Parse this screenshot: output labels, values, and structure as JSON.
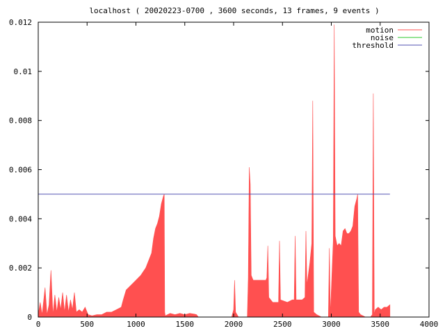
{
  "chart_data": {
    "type": "area",
    "title": "localhost ( 20020223-0700 , 3600 seconds, 13 frames, 9 events )",
    "xlabel": "",
    "ylabel": "",
    "xlim": [
      0,
      4000
    ],
    "ylim": [
      0,
      0.012
    ],
    "x_ticks": [
      "0",
      "500",
      "1000",
      "1500",
      "2000",
      "2500",
      "3000",
      "3500",
      "4000"
    ],
    "y_ticks": [
      "0",
      "0.002",
      "0.004",
      "0.006",
      "0.008",
      "0.01",
      "0.012"
    ],
    "grid": false,
    "legend_position": "top-right",
    "series": [
      {
        "name": "motion",
        "color": "#ff5050",
        "type": "area",
        "points": [
          [
            0,
            0.0001
          ],
          [
            20,
            0.0006
          ],
          [
            40,
            0.0001
          ],
          [
            70,
            0.0012
          ],
          [
            90,
            0.0001
          ],
          [
            110,
            0.0005
          ],
          [
            130,
            0.0019
          ],
          [
            150,
            0.0001
          ],
          [
            170,
            0.0009
          ],
          [
            190,
            0.0002
          ],
          [
            210,
            0.0008
          ],
          [
            230,
            0.0003
          ],
          [
            250,
            0.001
          ],
          [
            270,
            0.0002
          ],
          [
            290,
            0.0009
          ],
          [
            310,
            0.0002
          ],
          [
            330,
            0.0007
          ],
          [
            350,
            0.0003
          ],
          [
            370,
            0.001
          ],
          [
            390,
            0.0002
          ],
          [
            420,
            0.0003
          ],
          [
            450,
            0.0002
          ],
          [
            480,
            0.0004
          ],
          [
            510,
            0.0001
          ],
          [
            550,
            5e-05
          ],
          [
            600,
            0.0001
          ],
          [
            650,
            0.0001
          ],
          [
            700,
            0.0002
          ],
          [
            750,
            0.0002
          ],
          [
            800,
            0.0003
          ],
          [
            850,
            0.0004
          ],
          [
            870,
            0.0007
          ],
          [
            900,
            0.0011
          ],
          [
            950,
            0.0013
          ],
          [
            1000,
            0.0015
          ],
          [
            1050,
            0.0017
          ],
          [
            1100,
            0.002
          ],
          [
            1140,
            0.0024
          ],
          [
            1160,
            0.0026
          ],
          [
            1180,
            0.0032
          ],
          [
            1200,
            0.0036
          ],
          [
            1220,
            0.0038
          ],
          [
            1240,
            0.0041
          ],
          [
            1260,
            0.0046
          ],
          [
            1280,
            0.0049
          ],
          [
            1290,
            0.005
          ],
          [
            1295,
            0.0002
          ],
          [
            1300,
            5e-05
          ],
          [
            1350,
            0.00015
          ],
          [
            1400,
            0.0001
          ],
          [
            1450,
            0.00015
          ],
          [
            1500,
            0.0001
          ],
          [
            1550,
            0.00015
          ],
          [
            1600,
            0.00012
          ],
          [
            1620,
            0.0001
          ],
          [
            1640,
            0.0
          ],
          [
            1700,
            0.0
          ],
          [
            1800,
            0.0
          ],
          [
            1900,
            0.0
          ],
          [
            1980,
            0.0
          ],
          [
            2000,
            0.0003
          ],
          [
            2010,
            0.0015
          ],
          [
            2020,
            0.0002
          ],
          [
            2050,
            0.0
          ],
          [
            2100,
            0.0
          ],
          [
            2140,
            0.0
          ],
          [
            2150,
            0.0016
          ],
          [
            2160,
            0.0061
          ],
          [
            2170,
            0.0054
          ],
          [
            2180,
            0.0017
          ],
          [
            2200,
            0.0015
          ],
          [
            2250,
            0.0015
          ],
          [
            2300,
            0.0015
          ],
          [
            2330,
            0.0015
          ],
          [
            2340,
            0.0016
          ],
          [
            2350,
            0.0029
          ],
          [
            2360,
            0.0008
          ],
          [
            2400,
            0.0006
          ],
          [
            2460,
            0.0006
          ],
          [
            2470,
            0.0031
          ],
          [
            2480,
            0.0007
          ],
          [
            2550,
            0.0006
          ],
          [
            2600,
            0.0007
          ],
          [
            2620,
            0.0007
          ],
          [
            2630,
            0.0033
          ],
          [
            2640,
            0.0007
          ],
          [
            2700,
            0.0007
          ],
          [
            2730,
            0.0008
          ],
          [
            2740,
            0.0035
          ],
          [
            2750,
            0.0013
          ],
          [
            2780,
            0.0022
          ],
          [
            2800,
            0.003
          ],
          [
            2810,
            0.0088
          ],
          [
            2820,
            0.0002
          ],
          [
            2850,
            0.0001
          ],
          [
            2900,
            0.0
          ],
          [
            2950,
            0.0
          ],
          [
            2970,
            0.0
          ],
          [
            2980,
            0.0028
          ],
          [
            2990,
            0.0001
          ],
          [
            3020,
            0.0031
          ],
          [
            3030,
            0.0119
          ],
          [
            3040,
            0.0033
          ],
          [
            3060,
            0.0029
          ],
          [
            3080,
            0.003
          ],
          [
            3100,
            0.0029
          ],
          [
            3120,
            0.0035
          ],
          [
            3140,
            0.0036
          ],
          [
            3160,
            0.0034
          ],
          [
            3180,
            0.0034
          ],
          [
            3200,
            0.0035
          ],
          [
            3220,
            0.0037
          ],
          [
            3240,
            0.0045
          ],
          [
            3260,
            0.0048
          ],
          [
            3270,
            0.005
          ],
          [
            3280,
            0.0002
          ],
          [
            3300,
            0.0001
          ],
          [
            3350,
            0.0
          ],
          [
            3400,
            0.0
          ],
          [
            3420,
            0.0001
          ],
          [
            3430,
            0.0091
          ],
          [
            3440,
            0.0001
          ],
          [
            3450,
            0.0003
          ],
          [
            3480,
            0.0004
          ],
          [
            3510,
            0.0003
          ],
          [
            3540,
            0.0004
          ],
          [
            3570,
            0.0004
          ],
          [
            3600,
            0.0005
          ]
        ]
      },
      {
        "name": "noise",
        "color": "#2ec82e",
        "type": "line",
        "points": []
      },
      {
        "name": "threshold",
        "color": "#5050b0",
        "type": "line",
        "points": [
          [
            0,
            0.005
          ],
          [
            3600,
            0.005
          ]
        ]
      }
    ]
  }
}
